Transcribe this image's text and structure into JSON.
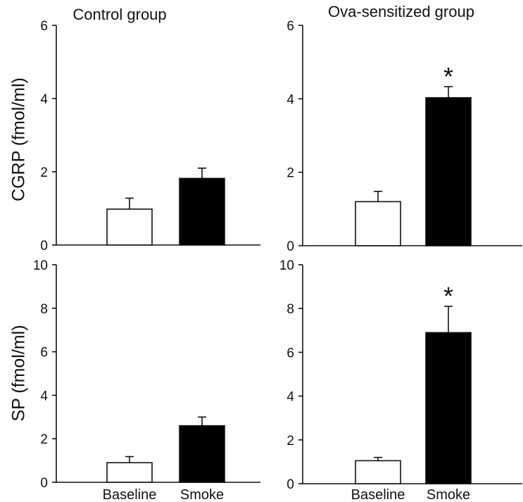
{
  "chart_data": [
    {
      "type": "bar",
      "title": "Control group",
      "ylabel": "CGRP (fmol/ml)",
      "categories": [
        "Baseline",
        "Smoke"
      ],
      "values": [
        0.98,
        1.82
      ],
      "errors": [
        0.3,
        0.28
      ],
      "fill": [
        "#ffffff",
        "#000000"
      ],
      "ylim": [
        0,
        6
      ],
      "yticks": [
        "0",
        "2",
        "4",
        "6"
      ],
      "significance": [
        "",
        ""
      ],
      "show_xlabels": false
    },
    {
      "type": "bar",
      "title": "Ova-sensitized group",
      "ylabel": "",
      "categories": [
        "Baseline",
        "Smoke"
      ],
      "values": [
        1.2,
        4.03
      ],
      "errors": [
        0.28,
        0.3
      ],
      "fill": [
        "#ffffff",
        "#000000"
      ],
      "ylim": [
        0,
        6
      ],
      "yticks": [
        "0",
        "2",
        "4",
        "6"
      ],
      "significance": [
        "",
        "*"
      ],
      "show_xlabels": false
    },
    {
      "type": "bar",
      "title": "",
      "ylabel": "SP (fmol/ml)",
      "categories": [
        "Baseline",
        "Smoke"
      ],
      "values": [
        0.9,
        2.6
      ],
      "errors": [
        0.28,
        0.4
      ],
      "fill": [
        "#ffffff",
        "#000000"
      ],
      "ylim": [
        0,
        10
      ],
      "yticks": [
        "0",
        "2",
        "4",
        "6",
        "8",
        "10"
      ],
      "significance": [
        "",
        ""
      ],
      "show_xlabels": true
    },
    {
      "type": "bar",
      "title": "",
      "ylabel": "",
      "categories": [
        "Baseline",
        "Smoke"
      ],
      "values": [
        1.05,
        6.9
      ],
      "errors": [
        0.15,
        1.2
      ],
      "fill": [
        "#ffffff",
        "#000000"
      ],
      "ylim": [
        0,
        10
      ],
      "yticks": [
        "0",
        "2",
        "4",
        "6",
        "8",
        "10"
      ],
      "significance": [
        "",
        "*"
      ],
      "show_xlabels": true
    }
  ]
}
